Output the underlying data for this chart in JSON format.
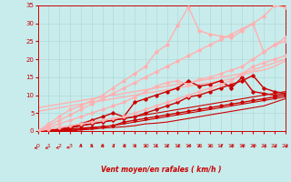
{
  "background_color": "#c8ecec",
  "grid_color": "#b0d8d8",
  "text_color": "#cc0000",
  "xlabel": "Vent moyen/en rafales ( km/h )",
  "xlim": [
    0,
    23
  ],
  "ylim": [
    0,
    35
  ],
  "yticks": [
    0,
    5,
    10,
    15,
    20,
    25,
    30,
    35
  ],
  "xticks": [
    0,
    1,
    2,
    3,
    4,
    5,
    6,
    7,
    8,
    9,
    10,
    11,
    12,
    13,
    14,
    15,
    16,
    17,
    18,
    19,
    20,
    21,
    22,
    23
  ],
  "lines": [
    {
      "x": [
        0,
        1,
        2,
        3,
        4,
        5,
        6,
        7,
        8,
        9,
        10,
        11,
        12,
        13,
        14,
        15,
        16,
        17,
        18,
        19,
        20,
        21,
        22,
        23
      ],
      "y": [
        0,
        0,
        0,
        0,
        0.3,
        0.5,
        0.8,
        1.0,
        1.2,
        1.5,
        2.0,
        2.2,
        2.5,
        3.0,
        3.5,
        4.0,
        4.5,
        5.0,
        5.5,
        6.0,
        6.5,
        7.0,
        8.0,
        9.0
      ],
      "color": "#cc0000",
      "lw": 0.8,
      "marker": null,
      "ms": 0,
      "linestyle": "-"
    },
    {
      "x": [
        0,
        1,
        2,
        3,
        4,
        5,
        6,
        7,
        8,
        9,
        10,
        11,
        12,
        13,
        14,
        15,
        16,
        17,
        18,
        19,
        20,
        21,
        22,
        23
      ],
      "y": [
        0,
        0,
        0,
        0.2,
        0.5,
        0.8,
        1.2,
        1.5,
        2.0,
        2.5,
        3.0,
        3.5,
        4.0,
        4.5,
        5.0,
        5.5,
        6.0,
        6.5,
        7.0,
        7.5,
        8.0,
        8.5,
        9.0,
        9.5
      ],
      "color": "#cc0000",
      "lw": 0.8,
      "marker": null,
      "ms": 0,
      "linestyle": "-"
    },
    {
      "x": [
        0,
        1,
        2,
        3,
        4,
        5,
        6,
        7,
        8,
        9,
        10,
        11,
        12,
        13,
        14,
        15,
        16,
        17,
        18,
        19,
        20,
        21,
        22,
        23
      ],
      "y": [
        0,
        0,
        0.3,
        0.8,
        1.5,
        2.0,
        2.5,
        3.0,
        3.5,
        4.0,
        4.5,
        5.0,
        5.5,
        6.0,
        6.5,
        7.0,
        7.5,
        8.0,
        8.5,
        9.0,
        9.5,
        10.0,
        10.5,
        11.0
      ],
      "color": "#cc0000",
      "lw": 0.8,
      "marker": null,
      "ms": 0,
      "linestyle": "-"
    },
    {
      "x": [
        0,
        1,
        2,
        3,
        4,
        5,
        6,
        7,
        8,
        9,
        10,
        11,
        12,
        13,
        14,
        15,
        16,
        17,
        18,
        19,
        20,
        21,
        22,
        23
      ],
      "y": [
        0,
        0,
        0.5,
        1.0,
        2.0,
        3.0,
        4.0,
        5.0,
        4.0,
        8.0,
        9.0,
        10.0,
        11.0,
        12.0,
        14.0,
        12.5,
        13.0,
        14.0,
        12.0,
        15.0,
        11.0,
        10.5,
        10.0,
        10.5
      ],
      "color": "#cc0000",
      "lw": 1.0,
      "marker": "D",
      "ms": 1.8,
      "linestyle": "-"
    },
    {
      "x": [
        0,
        1,
        2,
        3,
        4,
        5,
        6,
        7,
        8,
        9,
        10,
        11,
        12,
        13,
        14,
        15,
        16,
        17,
        18,
        19,
        20,
        21,
        22,
        23
      ],
      "y": [
        0,
        0.2,
        0.5,
        1.0,
        1.5,
        2.0,
        2.5,
        3.0,
        3.5,
        4.0,
        5.0,
        6.0,
        7.0,
        8.0,
        9.5,
        10.0,
        11.0,
        12.0,
        13.0,
        14.0,
        15.5,
        12.0,
        11.0,
        10.5
      ],
      "color": "#cc0000",
      "lw": 1.0,
      "marker": "D",
      "ms": 1.8,
      "linestyle": "-"
    },
    {
      "x": [
        0,
        1,
        2,
        3,
        4,
        5,
        6,
        7,
        8,
        9,
        10,
        11,
        12,
        13,
        14,
        15,
        16,
        17,
        18,
        19,
        20,
        21,
        22,
        23
      ],
      "y": [
        0,
        0,
        0.2,
        0.5,
        0.8,
        1.0,
        1.2,
        1.5,
        2.5,
        3.0,
        3.5,
        4.0,
        4.5,
        5.0,
        5.5,
        6.0,
        6.5,
        7.0,
        7.5,
        8.0,
        8.5,
        9.0,
        9.5,
        10.0
      ],
      "color": "#cc0000",
      "lw": 1.0,
      "marker": "D",
      "ms": 1.8,
      "linestyle": "-"
    },
    {
      "x": [
        0,
        1,
        2,
        3,
        4,
        5,
        6,
        7,
        8,
        9,
        10,
        11,
        12,
        13,
        14,
        15,
        16,
        17,
        18,
        19,
        20,
        21,
        22,
        23
      ],
      "y": [
        6.5,
        7.0,
        7.5,
        8.0,
        8.5,
        9.0,
        9.5,
        10.0,
        10.5,
        11.0,
        11.5,
        12.0,
        12.5,
        13.0,
        13.5,
        14.0,
        14.5,
        15.0,
        15.5,
        16.0,
        17.0,
        18.0,
        19.0,
        20.0
      ],
      "color": "#ffb0b0",
      "lw": 1.0,
      "marker": null,
      "ms": 0,
      "linestyle": "-"
    },
    {
      "x": [
        0,
        1,
        2,
        3,
        4,
        5,
        6,
        7,
        8,
        9,
        10,
        11,
        12,
        13,
        14,
        15,
        16,
        17,
        18,
        19,
        20,
        21,
        22,
        23
      ],
      "y": [
        5.5,
        6.0,
        6.5,
        7.0,
        7.5,
        8.0,
        8.5,
        9.0,
        9.5,
        10.0,
        10.5,
        11.0,
        11.5,
        12.0,
        12.5,
        13.0,
        13.5,
        14.0,
        14.5,
        15.5,
        16.5,
        17.0,
        18.0,
        19.5
      ],
      "color": "#ffb0b0",
      "lw": 1.0,
      "marker": null,
      "ms": 0,
      "linestyle": "-"
    },
    {
      "x": [
        0,
        1,
        2,
        3,
        4,
        5,
        6,
        7,
        8,
        9,
        10,
        11,
        12,
        13,
        14,
        15,
        16,
        17,
        18,
        19,
        20,
        21,
        22,
        23
      ],
      "y": [
        0,
        0.5,
        1.0,
        1.5,
        2.0,
        2.5,
        3.0,
        3.5,
        4.0,
        5.0,
        6.0,
        7.0,
        8.0,
        9.0,
        10.0,
        11.0,
        12.0,
        13.0,
        14.0,
        16.0,
        18.0,
        19.0,
        20.0,
        21.0
      ],
      "color": "#ffb0b0",
      "lw": 1.0,
      "marker": "D",
      "ms": 1.8,
      "linestyle": "-"
    },
    {
      "x": [
        0,
        1,
        2,
        3,
        4,
        5,
        6,
        7,
        8,
        9,
        10,
        11,
        12,
        13,
        14,
        15,
        16,
        17,
        18,
        19,
        20,
        21,
        22,
        23
      ],
      "y": [
        0,
        1.0,
        2.0,
        3.0,
        4.0,
        5.0,
        6.0,
        7.0,
        8.0,
        9.5,
        11.0,
        12.5,
        13.5,
        14.0,
        13.0,
        14.5,
        15.0,
        16.0,
        17.0,
        18.0,
        20.0,
        22.0,
        24.0,
        25.0
      ],
      "color": "#ffb0b0",
      "lw": 1.0,
      "marker": "D",
      "ms": 1.8,
      "linestyle": "-"
    },
    {
      "x": [
        0,
        1,
        2,
        3,
        4,
        5,
        6,
        7,
        8,
        9,
        10,
        11,
        12,
        13,
        14,
        15,
        16,
        17,
        18,
        19,
        20,
        21,
        22,
        23
      ],
      "y": [
        0,
        1.5,
        3.0,
        4.5,
        6.0,
        7.5,
        9.0,
        10.5,
        12.0,
        13.5,
        15.0,
        16.5,
        18.0,
        19.5,
        21.0,
        22.5,
        24.0,
        25.5,
        27.0,
        28.5,
        30.0,
        22.0,
        24.0,
        26.0
      ],
      "color": "#ffb0b0",
      "lw": 1.0,
      "marker": "D",
      "ms": 1.8,
      "linestyle": "-"
    },
    {
      "x": [
        0,
        1,
        2,
        3,
        4,
        5,
        6,
        7,
        8,
        9,
        10,
        11,
        12,
        13,
        14,
        15,
        16,
        17,
        18,
        19,
        20,
        21,
        22,
        23
      ],
      "y": [
        0,
        2.0,
        4.0,
        6.0,
        7.0,
        8.5,
        10.0,
        12.0,
        14.0,
        16.0,
        18.0,
        22.0,
        24.0,
        29.5,
        34.5,
        28.0,
        27.0,
        26.5,
        26.0,
        28.0,
        30.0,
        32.0,
        35.0,
        34.5
      ],
      "color": "#ffb0b0",
      "lw": 1.0,
      "marker": "D",
      "ms": 1.8,
      "linestyle": "-"
    }
  ],
  "arrow_angles": [
    200,
    200,
    195,
    185,
    90,
    85,
    80,
    75,
    70,
    70,
    75,
    80,
    75,
    70,
    75,
    80,
    75,
    70,
    65,
    60,
    55,
    50,
    50,
    45
  ]
}
